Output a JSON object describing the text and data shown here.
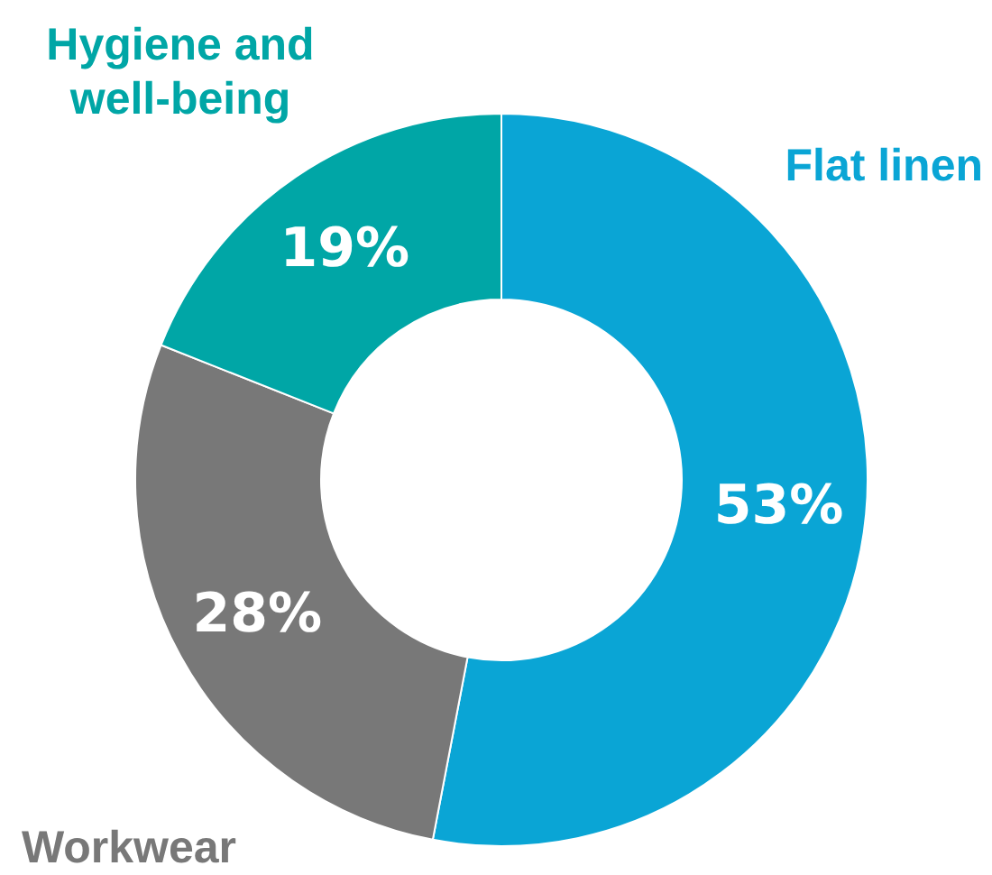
{
  "chart_data": {
    "type": "donut",
    "categories": [
      "Flat linen",
      "Workwear",
      "Hygiene and\nwell-being"
    ],
    "values": [
      53,
      28,
      19
    ],
    "value_labels": [
      "53%",
      "28%",
      "19%"
    ],
    "colors": [
      "#0aa5d5",
      "#787878",
      "#00a6a6"
    ],
    "legend": false
  }
}
